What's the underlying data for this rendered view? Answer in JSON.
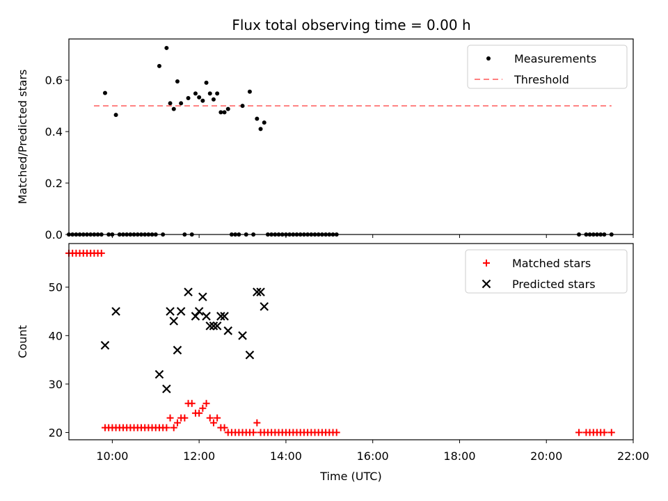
{
  "title": "Flux total observing time = 0.00 h",
  "colors": {
    "measurement": "#000000",
    "threshold": "#ff7f7f",
    "matched": "#ff0000",
    "predicted": "#000000"
  },
  "chart_data": [
    {
      "type": "scatter",
      "ylabel": "Matched/Predicted stars",
      "xlabel": "",
      "xlim": [
        "09:00",
        "22:00"
      ],
      "ylim": [
        0,
        0.76
      ],
      "yticks": [
        "0.0",
        "0.2",
        "0.4",
        "0.6"
      ],
      "legend": {
        "position": "top-right",
        "entries": [
          "Measurements",
          "Threshold"
        ]
      },
      "threshold": {
        "name": "Threshold",
        "value": 0.5,
        "x_range": [
          "09:00",
          "21:30"
        ]
      },
      "series": [
        {
          "name": "Measurements",
          "points": [
            [
              "09:00",
              0
            ],
            [
              "09:05",
              0
            ],
            [
              "09:10",
              0
            ],
            [
              "09:15",
              0
            ],
            [
              "09:20",
              0
            ],
            [
              "09:25",
              0
            ],
            [
              "09:30",
              0
            ],
            [
              "09:35",
              0
            ],
            [
              "09:40",
              0
            ],
            [
              "09:45",
              0
            ],
            [
              "09:50",
              0.55
            ],
            [
              "09:55",
              0
            ],
            [
              "10:00",
              0
            ],
            [
              "10:05",
              0.465
            ],
            [
              "10:10",
              0
            ],
            [
              "10:15",
              0
            ],
            [
              "10:20",
              0
            ],
            [
              "10:25",
              0
            ],
            [
              "10:30",
              0
            ],
            [
              "10:35",
              0
            ],
            [
              "10:40",
              0
            ],
            [
              "10:45",
              0
            ],
            [
              "10:50",
              0
            ],
            [
              "10:55",
              0
            ],
            [
              "11:00",
              0
            ],
            [
              "11:05",
              0.655
            ],
            [
              "11:10",
              0
            ],
            [
              "11:15",
              0.725
            ],
            [
              "11:20",
              0.51
            ],
            [
              "11:25",
              0.488
            ],
            [
              "11:30",
              0.595
            ],
            [
              "11:35",
              0.51
            ],
            [
              "11:40",
              0
            ],
            [
              "11:45",
              0.53
            ],
            [
              "11:50",
              0
            ],
            [
              "11:55",
              0.548
            ],
            [
              "12:00",
              0.533
            ],
            [
              "12:05",
              0.52
            ],
            [
              "12:10",
              0.59
            ],
            [
              "12:15",
              0.548
            ],
            [
              "12:20",
              0.525
            ],
            [
              "12:25",
              0.548
            ],
            [
              "12:30",
              0.475
            ],
            [
              "12:35",
              0.475
            ],
            [
              "12:40",
              0.488
            ],
            [
              "12:45",
              0
            ],
            [
              "12:50",
              0
            ],
            [
              "12:55",
              0
            ],
            [
              "13:00",
              0.5
            ],
            [
              "13:05",
              0
            ],
            [
              "13:10",
              0.555
            ],
            [
              "13:15",
              0
            ],
            [
              "13:20",
              0.45
            ],
            [
              "13:25",
              0.41
            ],
            [
              "13:30",
              0.435
            ],
            [
              "13:35",
              0
            ],
            [
              "13:40",
              0
            ],
            [
              "13:45",
              0
            ],
            [
              "13:50",
              0
            ],
            [
              "13:55",
              0
            ],
            [
              "14:00",
              0
            ],
            [
              "14:05",
              0
            ],
            [
              "14:10",
              0
            ],
            [
              "14:15",
              0
            ],
            [
              "14:20",
              0
            ],
            [
              "14:25",
              0
            ],
            [
              "14:30",
              0
            ],
            [
              "14:35",
              0
            ],
            [
              "14:40",
              0
            ],
            [
              "14:45",
              0
            ],
            [
              "14:50",
              0
            ],
            [
              "14:55",
              0
            ],
            [
              "15:00",
              0
            ],
            [
              "15:05",
              0
            ],
            [
              "15:10",
              0
            ],
            [
              "20:45",
              0
            ],
            [
              "20:55",
              0
            ],
            [
              "21:00",
              0
            ],
            [
              "21:05",
              0
            ],
            [
              "21:10",
              0
            ],
            [
              "21:15",
              0
            ],
            [
              "21:20",
              0
            ],
            [
              "21:30",
              0
            ]
          ]
        }
      ]
    },
    {
      "type": "scatter",
      "ylabel": "Count",
      "xlabel": "Time (UTC)",
      "xlim": [
        "09:00",
        "22:00"
      ],
      "ylim": [
        18.5,
        59
      ],
      "xticks": [
        "10:00",
        "12:00",
        "14:00",
        "16:00",
        "18:00",
        "20:00",
        "22:00"
      ],
      "yticks": [
        "20",
        "30",
        "40",
        "50"
      ],
      "legend": {
        "position": "top-right",
        "entries": [
          "Matched stars",
          "Predicted stars"
        ]
      },
      "series": [
        {
          "name": "Matched stars",
          "marker": "+",
          "points": [
            [
              "09:00",
              57
            ],
            [
              "09:05",
              57
            ],
            [
              "09:10",
              57
            ],
            [
              "09:15",
              57
            ],
            [
              "09:20",
              57
            ],
            [
              "09:25",
              57
            ],
            [
              "09:30",
              57
            ],
            [
              "09:35",
              57
            ],
            [
              "09:40",
              57
            ],
            [
              "09:45",
              57
            ],
            [
              "09:50",
              21
            ],
            [
              "09:55",
              21
            ],
            [
              "10:00",
              21
            ],
            [
              "10:05",
              21
            ],
            [
              "10:10",
              21
            ],
            [
              "10:15",
              21
            ],
            [
              "10:20",
              21
            ],
            [
              "10:25",
              21
            ],
            [
              "10:30",
              21
            ],
            [
              "10:35",
              21
            ],
            [
              "10:40",
              21
            ],
            [
              "10:45",
              21
            ],
            [
              "10:50",
              21
            ],
            [
              "10:55",
              21
            ],
            [
              "11:00",
              21
            ],
            [
              "11:05",
              21
            ],
            [
              "11:10",
              21
            ],
            [
              "11:15",
              21
            ],
            [
              "11:20",
              23
            ],
            [
              "11:25",
              21
            ],
            [
              "11:30",
              22
            ],
            [
              "11:35",
              23
            ],
            [
              "11:40",
              23
            ],
            [
              "11:45",
              26
            ],
            [
              "11:50",
              26
            ],
            [
              "11:55",
              24
            ],
            [
              "12:00",
              24
            ],
            [
              "12:05",
              25
            ],
            [
              "12:10",
              26
            ],
            [
              "12:15",
              23
            ],
            [
              "12:20",
              22
            ],
            [
              "12:25",
              23
            ],
            [
              "12:30",
              21
            ],
            [
              "12:35",
              21
            ],
            [
              "12:40",
              20
            ],
            [
              "12:45",
              20
            ],
            [
              "12:50",
              20
            ],
            [
              "12:55",
              20
            ],
            [
              "13:00",
              20
            ],
            [
              "13:05",
              20
            ],
            [
              "13:10",
              20
            ],
            [
              "13:15",
              20
            ],
            [
              "13:20",
              22
            ],
            [
              "13:25",
              20
            ],
            [
              "13:30",
              20
            ],
            [
              "13:35",
              20
            ],
            [
              "13:40",
              20
            ],
            [
              "13:45",
              20
            ],
            [
              "13:50",
              20
            ],
            [
              "13:55",
              20
            ],
            [
              "14:00",
              20
            ],
            [
              "14:05",
              20
            ],
            [
              "14:10",
              20
            ],
            [
              "14:15",
              20
            ],
            [
              "14:20",
              20
            ],
            [
              "14:25",
              20
            ],
            [
              "14:30",
              20
            ],
            [
              "14:35",
              20
            ],
            [
              "14:40",
              20
            ],
            [
              "14:45",
              20
            ],
            [
              "14:50",
              20
            ],
            [
              "14:55",
              20
            ],
            [
              "15:00",
              20
            ],
            [
              "15:05",
              20
            ],
            [
              "15:10",
              20
            ],
            [
              "20:45",
              20
            ],
            [
              "20:55",
              20
            ],
            [
              "21:00",
              20
            ],
            [
              "21:05",
              20
            ],
            [
              "21:10",
              20
            ],
            [
              "21:15",
              20
            ],
            [
              "21:20",
              20
            ],
            [
              "21:30",
              20
            ]
          ]
        },
        {
          "name": "Predicted stars",
          "marker": "x",
          "points": [
            [
              "09:50",
              38
            ],
            [
              "10:05",
              45
            ],
            [
              "11:05",
              32
            ],
            [
              "11:15",
              29
            ],
            [
              "11:20",
              45
            ],
            [
              "11:25",
              43
            ],
            [
              "11:30",
              37
            ],
            [
              "11:35",
              45
            ],
            [
              "11:45",
              49
            ],
            [
              "11:55",
              44
            ],
            [
              "12:00",
              45
            ],
            [
              "12:05",
              48
            ],
            [
              "12:10",
              44
            ],
            [
              "12:15",
              42
            ],
            [
              "12:20",
              42
            ],
            [
              "12:25",
              42
            ],
            [
              "12:30",
              44
            ],
            [
              "12:35",
              44
            ],
            [
              "12:40",
              41
            ],
            [
              "13:00",
              40
            ],
            [
              "13:10",
              36
            ],
            [
              "13:20",
              49
            ],
            [
              "13:25",
              49
            ],
            [
              "13:30",
              46
            ]
          ]
        }
      ]
    }
  ]
}
